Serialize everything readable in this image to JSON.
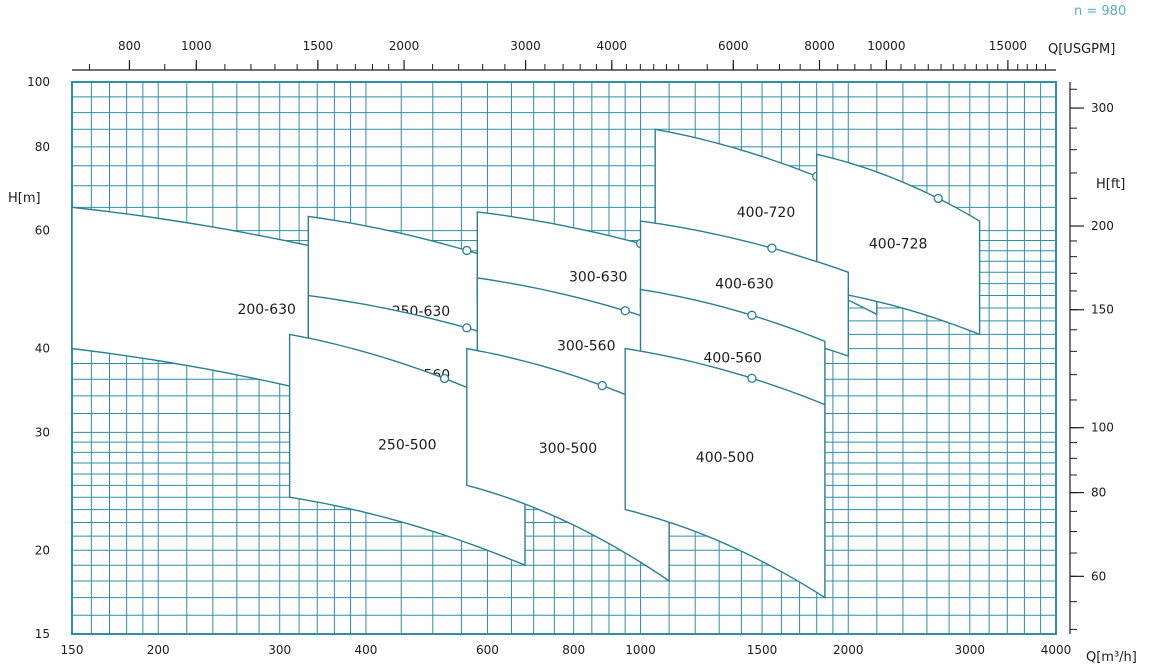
{
  "speed_note": "n = 980",
  "colors": {
    "grid": "#2e8fa6",
    "region_fill": "#ffffff",
    "region_stroke": "#2a7f93",
    "text": "#1c1c1c"
  },
  "chart_data": {
    "type": "area",
    "x_scale": "log",
    "y_scale": "log",
    "grid": true,
    "xlim": [
      150,
      4000
    ],
    "ylim": [
      15,
      100
    ],
    "xlabel": "Q[m³/h]",
    "ylabel": "H[m]",
    "top_axis_label": "Q[USGPM]",
    "right_axis_label": "H[ft]",
    "x_ticks": [
      "150",
      "200",
      "300",
      "400",
      "600",
      "800",
      "1000",
      "1500",
      "2000",
      "3000",
      "4000"
    ],
    "y_ticks": [
      "15",
      "20",
      "30",
      "40",
      "60",
      "80",
      "100"
    ],
    "top_ticks": [
      "800",
      "1000",
      "1500",
      "2000",
      "3000",
      "4000",
      "6000",
      "8000",
      "10000",
      "15000"
    ],
    "right_ticks": [
      "60",
      "80",
      "100",
      "150",
      "200",
      "300"
    ],
    "regions": [
      {
        "name": "200-630",
        "min_flow": 150,
        "bep_flow": 400,
        "max_flow": 550,
        "h_max_left": 65,
        "h_max_right": 50,
        "h_min_left": 40,
        "h_min_right": 30
      },
      {
        "name": "250-630",
        "min_flow": 330,
        "bep_flow": 560,
        "max_flow": 700,
        "h_max_left": 63,
        "h_max_right": 52,
        "h_min_left": 37,
        "h_min_right": 33
      },
      {
        "name": "250-560",
        "min_flow": 330,
        "bep_flow": 560,
        "max_flow": 700,
        "h_max_left": 48,
        "h_max_right": 40,
        "h_min_left": 32,
        "h_min_right": 27
      },
      {
        "name": "250-500",
        "min_flow": 310,
        "bep_flow": 520,
        "max_flow": 680,
        "h_max_left": 42,
        "h_max_right": 32,
        "h_min_left": 24,
        "h_min_right": 19
      },
      {
        "name": "300-630",
        "min_flow": 580,
        "bep_flow": 1000,
        "max_flow": 1300,
        "h_max_left": 64,
        "h_max_right": 53,
        "h_min_left": 47,
        "h_min_right": 40
      },
      {
        "name": "300-560",
        "min_flow": 580,
        "bep_flow": 950,
        "max_flow": 1200,
        "h_max_left": 51,
        "h_max_right": 42,
        "h_min_left": 37,
        "h_min_right": 31
      },
      {
        "name": "300-500",
        "min_flow": 560,
        "bep_flow": 880,
        "max_flow": 1100,
        "h_max_left": 40,
        "h_max_right": 32,
        "h_min_left": 25,
        "h_min_right": 18
      },
      {
        "name": "400-720",
        "min_flow": 1050,
        "bep_flow": 1800,
        "max_flow": 2200,
        "h_max_left": 85,
        "h_max_right": 66,
        "h_min_left": 59,
        "h_min_right": 45
      },
      {
        "name": "400-728",
        "min_flow": 1800,
        "bep_flow": 2700,
        "max_flow": 3100,
        "h_max_left": 78,
        "h_max_right": 62,
        "h_min_left": 49,
        "h_min_right": 42
      },
      {
        "name": "400-630",
        "min_flow": 1000,
        "bep_flow": 1550,
        "max_flow": 2000,
        "h_max_left": 62,
        "h_max_right": 52,
        "h_min_left": 46,
        "h_min_right": 39
      },
      {
        "name": "400-560",
        "min_flow": 1000,
        "bep_flow": 1450,
        "max_flow": 1850,
        "h_max_left": 49,
        "h_max_right": 41,
        "h_min_left": 35,
        "h_min_right": 30
      },
      {
        "name": "400-500",
        "min_flow": 950,
        "bep_flow": 1450,
        "max_flow": 1850,
        "h_max_left": 40,
        "h_max_right": 33,
        "h_min_left": 23,
        "h_min_right": 17
      }
    ]
  }
}
